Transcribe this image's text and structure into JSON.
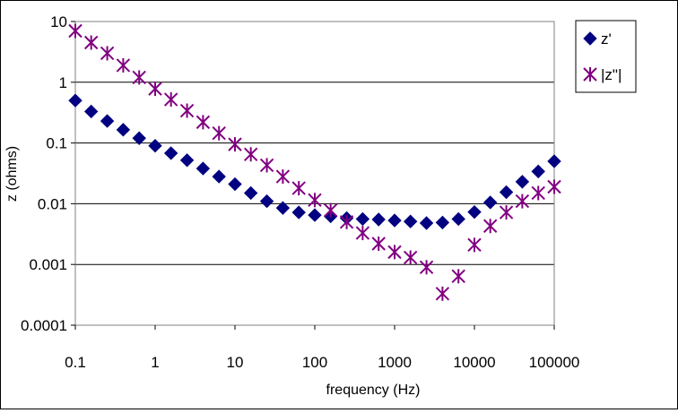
{
  "chart_data": {
    "type": "scatter",
    "title": "",
    "xlabel": "frequency (Hz)",
    "ylabel": "z (ohms)",
    "x_scale": "log",
    "y_scale": "log",
    "xlim": [
      0.1,
      100000
    ],
    "ylim": [
      0.0001,
      10
    ],
    "x_tick_labels": [
      "0.1",
      "1",
      "10",
      "100",
      "1000",
      "10000",
      "100000"
    ],
    "y_tick_labels": [
      "10",
      "1",
      "0.1",
      "0.01",
      "0.001",
      "0.0001"
    ],
    "grid": "horizontal",
    "legend_position": "top-right",
    "series": [
      {
        "name": "z'",
        "marker": "diamond",
        "color": "#000080",
        "x": [
          0.1,
          0.158,
          0.251,
          0.398,
          0.631,
          1,
          1.58,
          2.51,
          3.98,
          6.31,
          10,
          15.8,
          25.1,
          39.8,
          63.1,
          100,
          158,
          251,
          398,
          631,
          1000,
          1580,
          2510,
          3980,
          6310,
          10000,
          15800,
          25100,
          39800,
          63100,
          100000
        ],
        "values": [
          0.5,
          0.33,
          0.23,
          0.165,
          0.12,
          0.09,
          0.068,
          0.052,
          0.038,
          0.028,
          0.021,
          0.015,
          0.011,
          0.0085,
          0.0072,
          0.0065,
          0.0062,
          0.0058,
          0.0056,
          0.0055,
          0.0053,
          0.0051,
          0.0048,
          0.0049,
          0.0056,
          0.0073,
          0.0105,
          0.0155,
          0.023,
          0.034,
          0.05
        ]
      },
      {
        "name": "|z\"|",
        "marker": "asterisk",
        "color": "#800080",
        "x": [
          0.1,
          0.158,
          0.251,
          0.398,
          0.631,
          1,
          1.58,
          2.51,
          3.98,
          6.31,
          10,
          15.8,
          25.1,
          39.8,
          63.1,
          100,
          158,
          251,
          398,
          631,
          1000,
          1580,
          2510,
          3980,
          6310,
          10000,
          15800,
          25100,
          39800,
          63100,
          100000
        ],
        "values": [
          7,
          4.5,
          3,
          1.9,
          1.2,
          0.78,
          0.52,
          0.34,
          0.22,
          0.145,
          0.095,
          0.065,
          0.043,
          0.028,
          0.018,
          0.0115,
          0.0078,
          0.005,
          0.0033,
          0.0022,
          0.0016,
          0.0013,
          0.0009,
          0.00033,
          0.00064,
          0.0021,
          0.0043,
          0.0072,
          0.011,
          0.015,
          0.019
        ]
      }
    ]
  }
}
